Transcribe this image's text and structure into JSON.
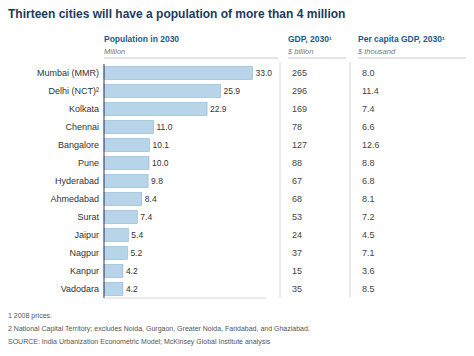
{
  "chart_data": {
    "type": "bar",
    "orientation": "horizontal",
    "title": "Thirteen cities will have a population of more than 4 million",
    "xlabel": "Population in 2030",
    "xlabel_unit": "Million",
    "categories": [
      "Mumbai (MMR)",
      "Delhi (NCT)²",
      "Kolkata",
      "Chennai",
      "Bangalore",
      "Pune",
      "Hyderabad",
      "Ahmedabad",
      "Surat",
      "Jaipur",
      "Nagpur",
      "Kanpur",
      "Vadodara"
    ],
    "values": [
      33.0,
      25.9,
      22.9,
      11.0,
      10.1,
      10.0,
      9.8,
      8.4,
      7.4,
      5.4,
      5.2,
      4.2,
      4.2
    ],
    "value_labels": [
      "33.0",
      "25.9",
      "22.9",
      "11.0",
      "10.1",
      "10.0",
      "9.8",
      "8.4",
      "7.4",
      "5.4",
      "5.2",
      "4.2",
      "4.2"
    ],
    "color": "#b8d4e8",
    "xlim": [
      0,
      36
    ],
    "data_labels": true,
    "tick_labels": "y",
    "grid": false,
    "table_columns": [
      {
        "name": "GDP, 2030¹",
        "unit": "$ billion",
        "values": [
          265,
          296,
          169,
          78,
          127,
          88,
          67,
          68,
          53,
          24,
          37,
          15,
          35
        ]
      },
      {
        "name": "Per capita GDP, 2030¹",
        "unit": "$ thousand",
        "values": [
          8.0,
          11.4,
          7.4,
          6.6,
          12.6,
          8.8,
          6.8,
          8.1,
          7.2,
          4.5,
          7.1,
          3.6,
          8.5
        ],
        "value_labels": [
          "8.0",
          "11.4",
          "7.4",
          "6.6",
          "12.6",
          "8.8",
          "6.8",
          "8.1",
          "7.2",
          "4.5",
          "7.1",
          "3.6",
          "8.5"
        ]
      }
    ],
    "footnotes": [
      "1  2008 prices.",
      "2  National Capital Territory; excludes Noida, Gurgaon, Greater Noida, Faridabad, and Ghaziabad.",
      "SOURCE: India Urbanization Econometric Model;  McKinsey Global Institute analysis"
    ]
  }
}
